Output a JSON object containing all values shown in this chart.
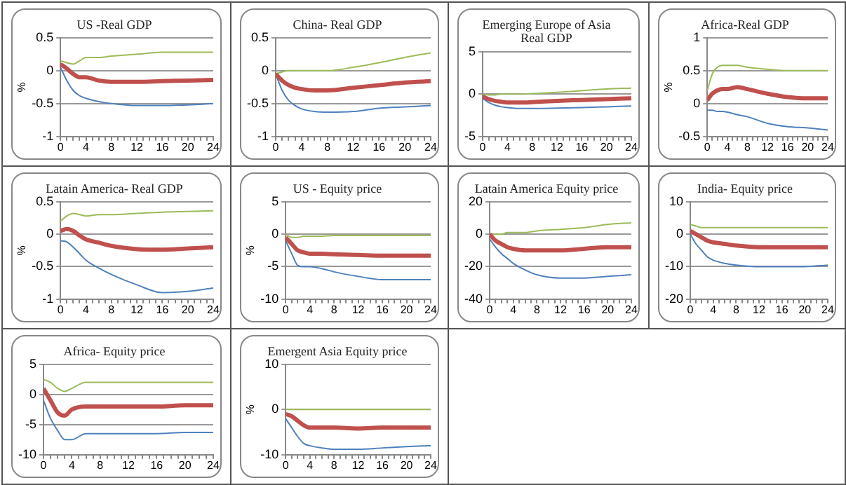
{
  "chart_data": [
    {
      "type": "line",
      "title": "US -Real GDP",
      "ylabel": "%",
      "xlim": [
        0,
        24
      ],
      "ylim": [
        -1,
        0.5
      ],
      "yticks": [
        -1,
        -0.5,
        0,
        0.5
      ],
      "xticks": [
        0,
        {
          "value": 1,
          "label": null
        },
        {
          "value": 2,
          "label": null
        },
        {
          "value": 3,
          "label": null
        },
        4,
        {
          "value": 5,
          "label": null
        },
        {
          "value": 6,
          "label": null
        },
        {
          "value": 7,
          "label": null
        },
        8,
        {
          "value": 9,
          "label": null
        },
        {
          "value": 10,
          "label": null
        },
        {
          "value": 11,
          "label": null
        },
        12,
        {
          "value": 13,
          "label": null
        },
        {
          "value": 14,
          "label": null
        },
        {
          "value": 15,
          "label": null
        },
        16,
        {
          "value": 17,
          "label": null
        },
        {
          "value": 18,
          "label": null
        },
        {
          "value": 19,
          "label": null
        },
        20,
        {
          "value": 21,
          "label": null
        },
        {
          "value": 22,
          "label": null
        },
        {
          "value": 23,
          "label": null
        },
        24
      ],
      "grid": "y",
      "x": [
        0,
        1,
        2,
        3,
        4,
        6,
        8,
        12,
        16,
        20,
        24
      ],
      "series": [
        {
          "color": "#4f81bd",
          "values": [
            0.05,
            -0.15,
            -0.3,
            -0.38,
            -0.42,
            -0.47,
            -0.5,
            -0.53,
            -0.53,
            -0.52,
            -0.5
          ]
        },
        {
          "color": "#9bbb59",
          "values": [
            0.15,
            0.12,
            0.1,
            0.15,
            0.2,
            0.2,
            0.22,
            0.25,
            0.28,
            0.28,
            0.28
          ]
        },
        {
          "color": "#c0504d",
          "values": [
            0.1,
            0.03,
            -0.05,
            -0.1,
            -0.1,
            -0.15,
            -0.17,
            -0.17,
            -0.16,
            -0.15,
            -0.14
          ]
        }
      ]
    },
    {
      "type": "line",
      "title": "China- Real GDP",
      "xlim": [
        0,
        24
      ],
      "ylim": [
        -1,
        0.5
      ],
      "yticks": [
        -1,
        -0.5,
        0,
        0.5
      ],
      "xticks": [
        0,
        {
          "value": 1,
          "label": null
        },
        {
          "value": 2,
          "label": null
        },
        {
          "value": 3,
          "label": null
        },
        4,
        {
          "value": 5,
          "label": null
        },
        {
          "value": 6,
          "label": null
        },
        {
          "value": 7,
          "label": null
        },
        8,
        {
          "value": 9,
          "label": null
        },
        {
          "value": 10,
          "label": null
        },
        {
          "value": 11,
          "label": null
        },
        12,
        {
          "value": 13,
          "label": null
        },
        {
          "value": 14,
          "label": null
        },
        {
          "value": 15,
          "label": null
        },
        16,
        {
          "value": 17,
          "label": null
        },
        {
          "value": 18,
          "label": null
        },
        {
          "value": 19,
          "label": null
        },
        20,
        {
          "value": 21,
          "label": null
        },
        {
          "value": 22,
          "label": null
        },
        {
          "value": 23,
          "label": null
        },
        24
      ],
      "grid": "y",
      "x": [
        0,
        1,
        2,
        3,
        4,
        6,
        8,
        12,
        16,
        20,
        24
      ],
      "series": [
        {
          "color": "#4f81bd",
          "values": [
            -0.05,
            -0.3,
            -0.45,
            -0.53,
            -0.58,
            -0.62,
            -0.63,
            -0.62,
            -0.57,
            -0.55,
            -0.53
          ]
        },
        {
          "color": "#9bbb59",
          "values": [
            -0.05,
            -0.02,
            0,
            0,
            0,
            0,
            0,
            0.05,
            0.12,
            0.2,
            0.27
          ]
        },
        {
          "color": "#c0504d",
          "values": [
            -0.05,
            -0.15,
            -0.22,
            -0.26,
            -0.28,
            -0.3,
            -0.3,
            -0.26,
            -0.22,
            -0.18,
            -0.16
          ]
        }
      ]
    },
    {
      "type": "line",
      "title": "Emerging Europe of Asia Real GDP",
      "xlim": [
        0,
        24
      ],
      "ylim": [
        -5,
        5
      ],
      "yticks": [
        -5,
        0,
        5
      ],
      "xticks": [
        0,
        {
          "value": 1,
          "label": null
        },
        {
          "value": 2,
          "label": null
        },
        {
          "value": 3,
          "label": null
        },
        4,
        {
          "value": 5,
          "label": null
        },
        {
          "value": 6,
          "label": null
        },
        {
          "value": 7,
          "label": null
        },
        8,
        {
          "value": 9,
          "label": null
        },
        {
          "value": 10,
          "label": null
        },
        {
          "value": 11,
          "label": null
        },
        12,
        {
          "value": 13,
          "label": null
        },
        {
          "value": 14,
          "label": null
        },
        {
          "value": 15,
          "label": null
        },
        16,
        {
          "value": 17,
          "label": null
        },
        {
          "value": 18,
          "label": null
        },
        {
          "value": 19,
          "label": null
        },
        20,
        {
          "value": 21,
          "label": null
        },
        {
          "value": 22,
          "label": null
        },
        {
          "value": 23,
          "label": null
        },
        24
      ],
      "grid": "y",
      "x": [
        0,
        1,
        2,
        3,
        4,
        6,
        8,
        12,
        16,
        20,
        24
      ],
      "series": [
        {
          "color": "#4f81bd",
          "values": [
            -0.5,
            -1,
            -1.3,
            -1.5,
            -1.6,
            -1.7,
            -1.7,
            -1.65,
            -1.6,
            -1.5,
            -1.4
          ]
        },
        {
          "color": "#9bbb59",
          "values": [
            0,
            -0.1,
            -0.1,
            0,
            0,
            0,
            0.05,
            0.2,
            0.4,
            0.6,
            0.7
          ]
        },
        {
          "color": "#c0504d",
          "values": [
            -0.3,
            -0.6,
            -0.8,
            -0.9,
            -1,
            -1,
            -0.95,
            -0.8,
            -0.7,
            -0.6,
            -0.5
          ]
        }
      ]
    },
    {
      "type": "line",
      "title": "Africa-Real GDP",
      "ylabel": "%",
      "xlim": [
        0,
        24
      ],
      "ylim": [
        -0.5,
        1
      ],
      "yticks": [
        -0.5,
        0,
        0.5,
        1
      ],
      "xticks": [
        0,
        {
          "value": 1,
          "label": null
        },
        {
          "value": 2,
          "label": null
        },
        {
          "value": 3,
          "label": null
        },
        4,
        {
          "value": 5,
          "label": null
        },
        {
          "value": 6,
          "label": null
        },
        {
          "value": 7,
          "label": null
        },
        8,
        {
          "value": 9,
          "label": null
        },
        {
          "value": 10,
          "label": null
        },
        {
          "value": 11,
          "label": null
        },
        12,
        {
          "value": 13,
          "label": null
        },
        {
          "value": 14,
          "label": null
        },
        {
          "value": 15,
          "label": null
        },
        16,
        {
          "value": 17,
          "label": null
        },
        {
          "value": 18,
          "label": null
        },
        {
          "value": 19,
          "label": null
        },
        20,
        {
          "value": 21,
          "label": null
        },
        {
          "value": 22,
          "label": null
        },
        {
          "value": 23,
          "label": null
        },
        24
      ],
      "grid": "y",
      "x": [
        0,
        1,
        2,
        3,
        4,
        6,
        8,
        12,
        16,
        20,
        24
      ],
      "series": [
        {
          "color": "#4f81bd",
          "values": [
            -0.1,
            -0.1,
            -0.12,
            -0.12,
            -0.13,
            -0.17,
            -0.2,
            -0.3,
            -0.35,
            -0.37,
            -0.4
          ]
        },
        {
          "color": "#9bbb59",
          "values": [
            0.2,
            0.45,
            0.55,
            0.58,
            0.58,
            0.58,
            0.55,
            0.52,
            0.5,
            0.5,
            0.5
          ]
        },
        {
          "color": "#c0504d",
          "values": [
            0.05,
            0.15,
            0.2,
            0.22,
            0.22,
            0.25,
            0.22,
            0.15,
            0.1,
            0.08,
            0.08
          ]
        }
      ]
    },
    {
      "type": "line",
      "title": "Latain America- Real GDP",
      "ylabel": "%",
      "xlim": [
        0,
        24
      ],
      "ylim": [
        -1,
        0.5
      ],
      "yticks": [
        -1,
        -0.5,
        0,
        0.5
      ],
      "xticks": [
        0,
        {
          "value": 1,
          "label": null
        },
        {
          "value": 2,
          "label": null
        },
        {
          "value": 3,
          "label": null
        },
        4,
        {
          "value": 5,
          "label": null
        },
        {
          "value": 6,
          "label": null
        },
        {
          "value": 7,
          "label": null
        },
        8,
        {
          "value": 9,
          "label": null
        },
        {
          "value": 10,
          "label": null
        },
        {
          "value": 11,
          "label": null
        },
        12,
        {
          "value": 13,
          "label": null
        },
        {
          "value": 14,
          "label": null
        },
        {
          "value": 15,
          "label": null
        },
        16,
        {
          "value": 17,
          "label": null
        },
        {
          "value": 18,
          "label": null
        },
        {
          "value": 19,
          "label": null
        },
        20,
        {
          "value": 21,
          "label": null
        },
        {
          "value": 22,
          "label": null
        },
        {
          "value": 23,
          "label": null
        },
        24
      ],
      "grid": "y",
      "x": [
        0,
        1,
        2,
        3,
        4,
        6,
        8,
        12,
        16,
        20,
        24
      ],
      "series": [
        {
          "color": "#4f81bd",
          "values": [
            -0.1,
            -0.12,
            -0.2,
            -0.3,
            -0.4,
            -0.52,
            -0.62,
            -0.78,
            -0.9,
            -0.88,
            -0.83
          ]
        },
        {
          "color": "#9bbb59",
          "values": [
            0.2,
            0.28,
            0.32,
            0.3,
            0.28,
            0.3,
            0.3,
            0.32,
            0.34,
            0.35,
            0.36
          ]
        },
        {
          "color": "#c0504d",
          "values": [
            0.05,
            0.08,
            0.05,
            -0.02,
            -0.08,
            -0.13,
            -0.18,
            -0.23,
            -0.24,
            -0.22,
            -0.2
          ]
        }
      ]
    },
    {
      "type": "line",
      "title": "US - Equity price",
      "ylabel": "%",
      "xlim": [
        0,
        24
      ],
      "ylim": [
        -10,
        5
      ],
      "yticks": [
        -10,
        -5,
        0,
        5
      ],
      "xticks": [
        0,
        {
          "value": 1,
          "label": null
        },
        {
          "value": 2,
          "label": null
        },
        {
          "value": 3,
          "label": null
        },
        4,
        {
          "value": 5,
          "label": null
        },
        {
          "value": 6,
          "label": null
        },
        {
          "value": 7,
          "label": null
        },
        8,
        {
          "value": 9,
          "label": null
        },
        {
          "value": 10,
          "label": null
        },
        {
          "value": 11,
          "label": null
        },
        12,
        {
          "value": 13,
          "label": null
        },
        {
          "value": 14,
          "label": null
        },
        {
          "value": 15,
          "label": null
        },
        16,
        {
          "value": 17,
          "label": null
        },
        {
          "value": 18,
          "label": null
        },
        {
          "value": 19,
          "label": null
        },
        20,
        {
          "value": 21,
          "label": null
        },
        {
          "value": 22,
          "label": null
        },
        {
          "value": 23,
          "label": null
        },
        24
      ],
      "grid": "y",
      "x": [
        0,
        1,
        2,
        3,
        4,
        6,
        8,
        12,
        16,
        20,
        24
      ],
      "series": [
        {
          "color": "#4f81bd",
          "values": [
            -1,
            -3,
            -4.8,
            -5,
            -5,
            -5.3,
            -5.8,
            -6.5,
            -7,
            -7,
            -7
          ]
        },
        {
          "color": "#9bbb59",
          "values": [
            0,
            -0.5,
            -0.5,
            -0.3,
            -0.3,
            -0.3,
            -0.2,
            -0.2,
            -0.2,
            -0.2,
            -0.2
          ]
        },
        {
          "color": "#c0504d",
          "values": [
            -0.5,
            -1.5,
            -2.5,
            -2.8,
            -3,
            -3,
            -3.1,
            -3.2,
            -3.3,
            -3.3,
            -3.3
          ]
        }
      ]
    },
    {
      "type": "line",
      "title": "Latain America Equity price",
      "xlim": [
        0,
        24
      ],
      "ylim": [
        -40,
        20
      ],
      "yticks": [
        -40,
        -20,
        0,
        20
      ],
      "xticks": [
        0,
        {
          "value": 1,
          "label": null
        },
        {
          "value": 2,
          "label": null
        },
        {
          "value": 3,
          "label": null
        },
        4,
        {
          "value": 5,
          "label": null
        },
        {
          "value": 6,
          "label": null
        },
        {
          "value": 7,
          "label": null
        },
        8,
        {
          "value": 9,
          "label": null
        },
        {
          "value": 10,
          "label": null
        },
        {
          "value": 11,
          "label": null
        },
        12,
        {
          "value": 13,
          "label": null
        },
        {
          "value": 14,
          "label": null
        },
        {
          "value": 15,
          "label": null
        },
        16,
        {
          "value": 17,
          "label": null
        },
        {
          "value": 18,
          "label": null
        },
        {
          "value": 19,
          "label": null
        },
        20,
        {
          "value": 21,
          "label": null
        },
        {
          "value": 22,
          "label": null
        },
        {
          "value": 23,
          "label": null
        },
        24
      ],
      "grid": "y",
      "x": [
        0,
        1,
        2,
        3,
        4,
        6,
        8,
        12,
        16,
        20,
        24
      ],
      "series": [
        {
          "color": "#4f81bd",
          "values": [
            -3,
            -8,
            -12,
            -15,
            -18,
            -22,
            -25,
            -27,
            -27,
            -26,
            -25
          ]
        },
        {
          "color": "#9bbb59",
          "values": [
            0,
            0,
            0,
            1,
            1,
            1,
            2,
            3,
            4,
            6,
            7
          ]
        },
        {
          "color": "#c0504d",
          "values": [
            0,
            -4,
            -6,
            -8,
            -9,
            -10,
            -10,
            -10,
            -9,
            -8,
            -8
          ]
        }
      ]
    },
    {
      "type": "line",
      "title": "India- Equity price",
      "xlim": [
        0,
        24
      ],
      "ylim": [
        -20,
        10
      ],
      "yticks": [
        -20,
        -10,
        0,
        10
      ],
      "xticks": [
        0,
        {
          "value": 1,
          "label": null
        },
        {
          "value": 2,
          "label": null
        },
        {
          "value": 3,
          "label": null
        },
        4,
        {
          "value": 5,
          "label": null
        },
        {
          "value": 6,
          "label": null
        },
        {
          "value": 7,
          "label": null
        },
        8,
        {
          "value": 9,
          "label": null
        },
        {
          "value": 10,
          "label": null
        },
        {
          "value": 11,
          "label": null
        },
        12,
        {
          "value": 13,
          "label": null
        },
        {
          "value": 14,
          "label": null
        },
        {
          "value": 15,
          "label": null
        },
        16,
        {
          "value": 17,
          "label": null
        },
        {
          "value": 18,
          "label": null
        },
        {
          "value": 19,
          "label": null
        },
        20,
        {
          "value": 21,
          "label": null
        },
        {
          "value": 22,
          "label": null
        },
        {
          "value": 23,
          "label": null
        },
        24
      ],
      "grid": "y",
      "x": [
        0,
        1,
        2,
        3,
        4,
        6,
        8,
        12,
        16,
        20,
        24
      ],
      "series": [
        {
          "color": "#4f81bd",
          "values": [
            0,
            -3,
            -5,
            -7,
            -8,
            -9,
            -9.5,
            -10,
            -10,
            -10,
            -9.5
          ]
        },
        {
          "color": "#9bbb59",
          "values": [
            3,
            2.5,
            2,
            2,
            2,
            2,
            2,
            2,
            2,
            2,
            2
          ]
        },
        {
          "color": "#c0504d",
          "values": [
            1,
            0,
            -1,
            -2,
            -2.5,
            -3,
            -3.5,
            -4,
            -4,
            -4,
            -4
          ]
        }
      ]
    },
    {
      "type": "line",
      "title": "Africa- Equity price",
      "xlim": [
        0,
        24
      ],
      "ylim": [
        -10,
        5
      ],
      "yticks": [
        -10,
        -5,
        0,
        5
      ],
      "xticks": [
        0,
        {
          "value": 1,
          "label": null
        },
        {
          "value": 2,
          "label": null
        },
        {
          "value": 3,
          "label": null
        },
        4,
        {
          "value": 5,
          "label": null
        },
        {
          "value": 6,
          "label": null
        },
        {
          "value": 7,
          "label": null
        },
        8,
        {
          "value": 9,
          "label": null
        },
        {
          "value": 10,
          "label": null
        },
        {
          "value": 11,
          "label": null
        },
        12,
        {
          "value": 13,
          "label": null
        },
        {
          "value": 14,
          "label": null
        },
        {
          "value": 15,
          "label": null
        },
        16,
        {
          "value": 17,
          "label": null
        },
        {
          "value": 18,
          "label": null
        },
        {
          "value": 19,
          "label": null
        },
        20,
        {
          "value": 21,
          "label": null
        },
        {
          "value": 22,
          "label": null
        },
        {
          "value": 23,
          "label": null
        },
        24
      ],
      "grid": "y",
      "x": [
        0,
        1,
        2,
        3,
        4,
        6,
        8,
        12,
        16,
        20,
        24
      ],
      "series": [
        {
          "color": "#4f81bd",
          "values": [
            -1,
            -4,
            -6,
            -7.5,
            -7.5,
            -6.5,
            -6.5,
            -6.5,
            -6.5,
            -6.3,
            -6.3
          ]
        },
        {
          "color": "#9bbb59",
          "values": [
            2.5,
            2,
            1,
            0.5,
            1,
            2,
            2,
            2,
            2,
            2,
            2
          ]
        },
        {
          "color": "#c0504d",
          "values": [
            1,
            -1,
            -3,
            -3.5,
            -2.5,
            -2,
            -2,
            -2,
            -2,
            -1.8,
            -1.8
          ]
        }
      ]
    },
    {
      "type": "line",
      "title": "Emergent Asia Equity price",
      "ylabel": "%",
      "xlim": [
        0,
        24
      ],
      "ylim": [
        -10,
        10
      ],
      "yticks": [
        -10,
        0,
        10
      ],
      "xticks": [
        0,
        {
          "value": 1,
          "label": null
        },
        {
          "value": 2,
          "label": null
        },
        {
          "value": 3,
          "label": null
        },
        4,
        {
          "value": 5,
          "label": null
        },
        {
          "value": 6,
          "label": null
        },
        {
          "value": 7,
          "label": null
        },
        8,
        {
          "value": 9,
          "label": null
        },
        {
          "value": 10,
          "label": null
        },
        {
          "value": 11,
          "label": null
        },
        12,
        {
          "value": 13,
          "label": null
        },
        {
          "value": 14,
          "label": null
        },
        {
          "value": 15,
          "label": null
        },
        16,
        {
          "value": 17,
          "label": null
        },
        {
          "value": 18,
          "label": null
        },
        {
          "value": 19,
          "label": null
        },
        20,
        {
          "value": 21,
          "label": null
        },
        {
          "value": 22,
          "label": null
        },
        {
          "value": 23,
          "label": null
        },
        24
      ],
      "grid": "y",
      "x": [
        0,
        1,
        2,
        3,
        4,
        6,
        8,
        12,
        16,
        20,
        24
      ],
      "series": [
        {
          "color": "#4f81bd",
          "values": [
            -2,
            -4,
            -6,
            -7.5,
            -8,
            -8.5,
            -8.8,
            -8.8,
            -8.5,
            -8.2,
            -8
          ]
        },
        {
          "color": "#9bbb59",
          "values": [
            0,
            0,
            0,
            0,
            0,
            0,
            0,
            0,
            0,
            0,
            0
          ]
        },
        {
          "color": "#c0504d",
          "values": [
            -1,
            -1.5,
            -2.5,
            -3.5,
            -4,
            -4,
            -4,
            -4.2,
            -4,
            -4,
            -4
          ]
        }
      ]
    }
  ]
}
